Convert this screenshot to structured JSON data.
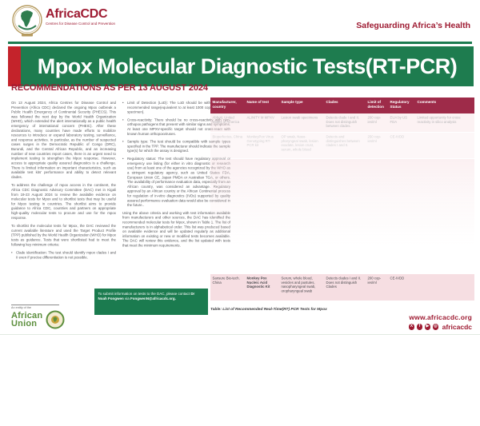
{
  "header": {
    "brand": "AfricaCDC",
    "brand_sub": "Centres for Disease Control and Prevention",
    "tagline": "Safeguarding Africa’s Health"
  },
  "banner": {
    "title": "Mpox Molecular Diagnostic Tests(RT-PCR)"
  },
  "recommendations": {
    "heading": "RECOMMENDATIONS AS PER 13 AUGUST 2024",
    "col1": {
      "p1": "On 13 August 2024, Africa Centres for Disease Control and Prevention (Africa CDC) declared the ongoing Mpox outbreak a Public Health Emergency of Continental Security (PHECS). This was followed the next day by the World Health Organization (WHO), which extended the alert internationally as a public health emergency of international concern (PHEIC). After these declarations, many countries have made efforts to mobilize resources to introduce or expand laboratory testing, surveillance, and response activities. In particular, as the number of suspected cases surges in the Democratic Republic of Congo (DRC), Burundi, and the Central African Republic, and an increasing number of new countries report cases, there is an urgent need to implement testing to strengthen the Mpox response. However, access to appropriate quality assured diagnostics is a challenge. There is limited information on important characteristics, such as available test kits' performance and ability to detect relevant clades.",
      "p2": "To address the challenge of mpox access in the continent, the Africa CDC Diagnostic Advisory Committee (DAC) met in Kigali from 19-23 August 2024 to review the available evidence on molecular tests for Mpox and to shortlist tests that may be useful for Mpox testing in countries. The shortlist aims to provide guidance to Africa CDC, countries and partners on appropriate high-quality molecular tests to procure and use for the mpox response.",
      "p3": "To shortlist the molecular tests for Mpox, the DAC reviewed the current available literature and used the Target Product Profile (TPP) published by the World Health Organization (WHO) for Mpox tests as guidance. Tests that were shortlisted had to meet the following key minimum criteria:",
      "bullet1": "Clade identification: The test should identify mpox clades I and II even if precise differentiation is not possible."
    },
    "col2": {
      "bullets": [
        "Limit of Detection (LoD): The LoD should be within the WHO recommended range(equivalent to at least 1000 copies per ml of specimen).",
        "Cross-reactivity: There should be no cross-reactivity with non-orthopox pathogens that present with similar signs and symptoms. At least one MPXV-specific target should not cross-react with known human orthopoxviruses.",
        "Sample type: The test should be compatible with sample types specified in the TPP. The manufacturer should indicate the sample type(s) for which the assay is designed.",
        "Regulatory status: The test should have regulatory approval or emergency use listing (for either in vitro diagnostic or research use) from at least one of the agencies recognized by the WHO as a stringent regulatory agency, such as United States FDA, European Union CE, Japan PMDA or Australian TGA, or others. The availability of performance evaluation data, especially from an African country, was considered an advantage. Regulatory approval by an African country or the African Continental process for regulation of in-vitro diagnostics (IVDs) supported by quality assured performance evaluation data would also be considered in the future.."
      ],
      "closing": "Using the above criteria and working with test information available from manufacturers and other sources, the DAC has identified the recommended molecular tests for Mpox, shown in Table 1. The list of manufacturers is in alphabetical order. This list was produced based on available evidence and will be updated regularly as additional information on existing or new or modified tests becomes available. The DAC will review this evidence, and the list updated with tests that meet the minimum requirements."
    }
  },
  "contact_box": {
    "text_intro": "To submit information on tests to the DAC, please contact ",
    "name": "Dr Noah Fongwen",
    "via": " via ",
    "email": "FongwenN@africacdc.org."
  },
  "table": {
    "headers": [
      "Manufacturer, country",
      "Name of test",
      "Sample type",
      "Clades",
      "Limit of detection",
      "Regulatory Status",
      "Comments"
    ],
    "rows": [
      {
        "style": "faint1",
        "cells": [
          "Abbott, United States of America",
          "ALINITY M MPXV",
          "Lesion swab specimens",
          "Detects clade I and II. Does not distinguish between clades.",
          "200 cop-ies/ml",
          "EUA by US FDA",
          "Limited opportunity for cross reactivity in silico analysis"
        ]
      },
      {
        "style": "faint2",
        "cells": [
          "Bioperfectus, China",
          "MonkeyPox Virus Genotyping RT-PCR kit",
          "OP swab, Naso-pharyngeal swab, lesion exudate, lesion crust, serum, whole blood",
          "Detects and distinguishes between clades I and II.",
          "250 cop-ies/ml",
          "CE-IVDD",
          ""
        ]
      },
      {
        "style": "fade"
      },
      {
        "style": "strong",
        "bold_cols": [
          1
        ],
        "cells": [
          "Sansure Bio-tech. China",
          "Monkey Pox Nucleic Acid Diagnostic Kit",
          "Serum, whole blood, vesicles and pustules, nasopharyngeal swab, oropharyngeal swab",
          "Detects clades I and II. Does not distinguish Clades",
          "200 cop-ies/ml",
          "CE-IVDD",
          ""
        ]
      }
    ],
    "caption": "Table: List of Recommended Real-Time(RT) PCR Tests for Mpox"
  },
  "footer": {
    "au_entity": "An entity of the",
    "au_line1": "African",
    "au_line2": "Union",
    "website": "www.africacdc.org",
    "social_handle": "africacdc",
    "social_icons": [
      {
        "name": "x-icon",
        "glyph": "X"
      },
      {
        "name": "facebook-icon",
        "glyph": "f"
      },
      {
        "name": "youtube-icon",
        "glyph": "▶"
      },
      {
        "name": "instagram-icon",
        "glyph": "◎"
      }
    ]
  },
  "colors": {
    "brand_red": "#9e1b32",
    "banner_green": "#1e7c4f",
    "accent_red": "#c4232b",
    "table_header_maroon": "#9e2b49",
    "row_pink": "#f6dee2"
  }
}
